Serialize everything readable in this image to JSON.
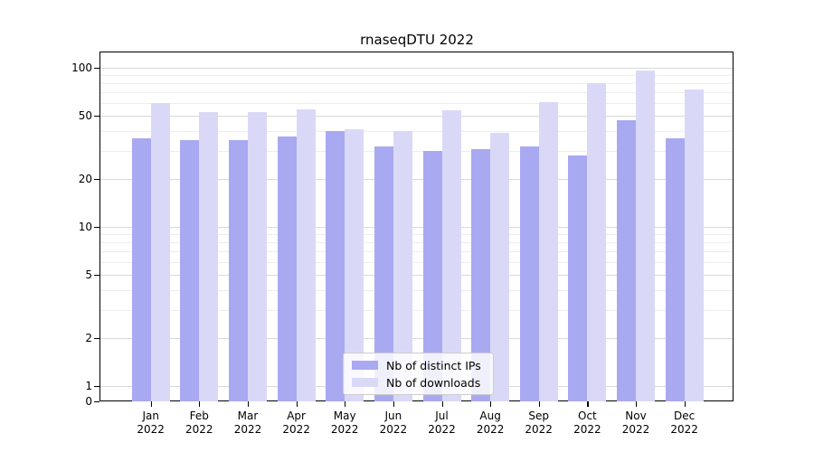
{
  "title": "rnaseqDTU 2022",
  "chart_data": {
    "type": "bar",
    "scale": "symlog",
    "title": "rnaseqDTU 2022",
    "categories": [
      "Jan",
      "Feb",
      "Mar",
      "Apr",
      "May",
      "Jun",
      "Jul",
      "Aug",
      "Sep",
      "Oct",
      "Nov",
      "Dec"
    ],
    "year_label": "2022",
    "series": [
      {
        "name": "Nb of distinct IPs",
        "color": "#a9a9f1",
        "values": [
          36,
          35,
          35,
          37,
          40,
          32,
          30,
          31,
          32,
          28,
          47,
          36
        ]
      },
      {
        "name": "Nb of downloads",
        "color": "#d9d9f7",
        "values": [
          60,
          53,
          53,
          55,
          41,
          40,
          54,
          39,
          61,
          80,
          96,
          73
        ]
      }
    ],
    "xlabel": "",
    "ylabel": "",
    "y_major_ticks": [
      100,
      50,
      20,
      10,
      5,
      2,
      1,
      0
    ],
    "y_minor_gridlines": [
      90,
      80,
      70,
      60,
      40,
      30,
      9,
      8,
      7,
      6,
      4,
      3
    ],
    "ylim": [
      0,
      127
    ],
    "linthresh": 1,
    "grid": true,
    "legend_position": "lower center"
  }
}
